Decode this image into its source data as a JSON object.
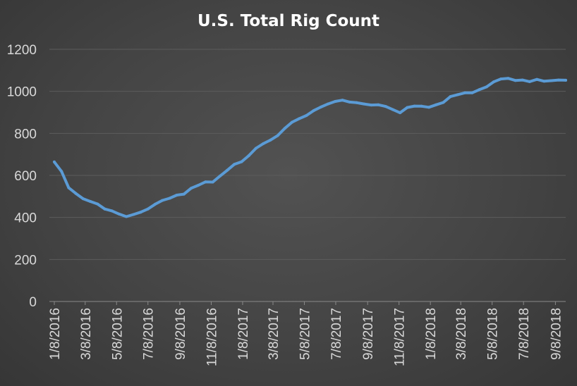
{
  "chart_data": {
    "type": "line",
    "title": "U.S. Total Rig Count",
    "xlabel": "",
    "ylabel": "",
    "ylim": [
      0,
      1200
    ],
    "yticks": [
      0,
      200,
      400,
      600,
      800,
      1000,
      1200
    ],
    "xtick_labels": [
      "1/8/2016",
      "3/8/2016",
      "5/8/2016",
      "7/8/2016",
      "9/8/2016",
      "11/8/2016",
      "1/8/2017",
      "3/8/2017",
      "5/8/2017",
      "7/8/2017",
      "9/8/2017",
      "11/8/2017",
      "1/8/2018",
      "3/8/2018",
      "5/8/2018",
      "7/8/2018",
      "9/8/2018"
    ],
    "grid": true,
    "legend": "none",
    "line_color": "#5b9bd5",
    "series": [
      {
        "x": [
          "2016-01-08",
          "2016-01-22",
          "2016-02-05",
          "2016-02-19",
          "2016-03-04",
          "2016-03-18",
          "2016-04-01",
          "2016-04-15",
          "2016-04-29",
          "2016-05-13",
          "2016-05-27",
          "2016-06-10",
          "2016-06-24",
          "2016-07-08",
          "2016-07-22",
          "2016-08-05",
          "2016-08-19",
          "2016-09-02",
          "2016-09-16",
          "2016-09-30",
          "2016-10-14",
          "2016-10-28",
          "2016-11-11",
          "2016-11-25",
          "2016-12-09",
          "2016-12-23",
          "2017-01-06",
          "2017-01-20",
          "2017-02-03",
          "2017-02-17",
          "2017-03-03",
          "2017-03-17",
          "2017-03-31",
          "2017-04-14",
          "2017-04-28",
          "2017-05-12",
          "2017-05-26",
          "2017-06-09",
          "2017-06-23",
          "2017-07-07",
          "2017-07-21",
          "2017-08-04",
          "2017-08-18",
          "2017-09-01",
          "2017-09-15",
          "2017-09-29",
          "2017-10-13",
          "2017-10-27",
          "2017-11-10",
          "2017-11-24",
          "2017-12-08",
          "2017-12-22",
          "2018-01-05",
          "2018-01-19",
          "2018-02-02",
          "2018-02-16",
          "2018-03-02",
          "2018-03-16",
          "2018-03-30",
          "2018-04-13",
          "2018-04-27",
          "2018-05-11",
          "2018-05-25",
          "2018-06-08",
          "2018-06-22",
          "2018-07-06",
          "2018-07-20",
          "2018-08-03",
          "2018-08-17",
          "2018-08-31",
          "2018-09-14",
          "2018-09-28"
        ],
        "y": [
          664,
          619,
          541,
          514,
          489,
          476,
          464,
          440,
          431,
          416,
          404,
          414,
          425,
          440,
          463,
          481,
          491,
          506,
          511,
          539,
          553,
          569,
          568,
          597,
          624,
          653,
          665,
          694,
          729,
          751,
          768,
          789,
          824,
          853,
          870,
          885,
          908,
          925,
          940,
          952,
          958,
          949,
          946,
          940,
          935,
          936,
          928,
          913,
          898,
          923,
          930,
          929,
          924,
          936,
          947,
          975,
          984,
          993,
          993,
          1008,
          1021,
          1045,
          1059,
          1062,
          1052,
          1054,
          1046,
          1057,
          1048,
          1051,
          1054,
          1053
        ]
      }
    ]
  }
}
